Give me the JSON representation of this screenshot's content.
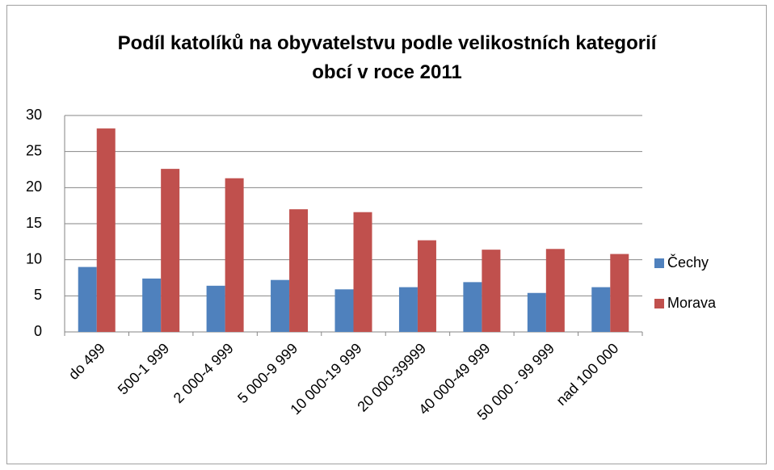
{
  "chart_data": {
    "type": "bar",
    "title": "Podíl katolíků na obyvatelstvu podle velikostních kategorií obcí v roce 2011",
    "categories": [
      "do 499",
      "500-1 999",
      "2 000-4 999",
      "5 000-9 999",
      "10 000-19 999",
      "20 000-39999",
      "40 000-49 999",
      "50 000 - 99 999",
      "nad 100 000"
    ],
    "series": [
      {
        "name": "Čechy",
        "color": "#4f81bd",
        "values": [
          9.0,
          7.4,
          6.4,
          7.2,
          5.9,
          6.2,
          6.9,
          5.4,
          6.2
        ]
      },
      {
        "name": "Morava",
        "color": "#c0504d",
        "values": [
          28.2,
          22.6,
          21.3,
          17.0,
          16.6,
          12.7,
          11.4,
          11.5,
          10.8
        ]
      }
    ],
    "ylim": [
      0,
      30
    ],
    "yticks": [
      0,
      5,
      10,
      15,
      20,
      25,
      30
    ],
    "grid": true,
    "legend": "right"
  }
}
